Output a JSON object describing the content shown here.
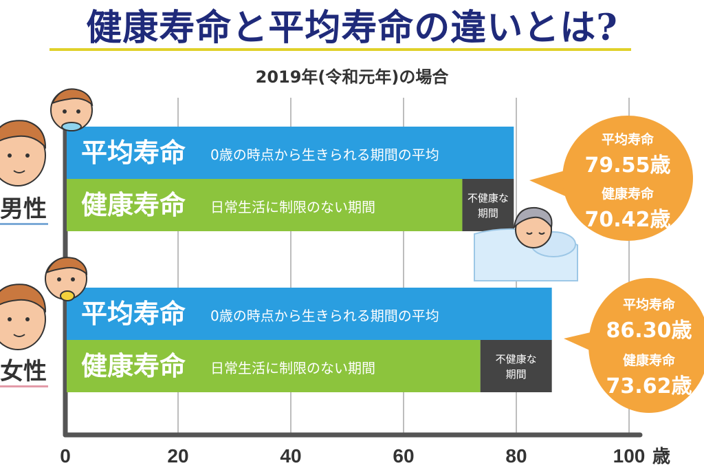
{
  "title": "健康寿命と平均寿命の違いとは?",
  "subtitle": "2019年(令和元年)の場合",
  "colors": {
    "average_bar": "#2a9ee0",
    "healthy_bar": "#8cc43d",
    "unhealthy_bar": "#444444",
    "bubble": "#f4a53c",
    "axis": "#555555",
    "grid": "#bdbdbd",
    "male_line": "#7aa9d6",
    "female_line": "#e39aa8"
  },
  "chart_data": {
    "type": "bar",
    "orientation": "horizontal",
    "x_ticks": [
      "0",
      "20",
      "40",
      "60",
      "80",
      "100"
    ],
    "x_unit": "歳",
    "xlim": [
      0,
      105
    ],
    "grid": true,
    "groups": [
      {
        "gender": "男性",
        "average_title": "平均寿命",
        "average_desc": "0歳の時点から生きられる期間の平均",
        "healthy_title": "健康寿命",
        "healthy_desc": "日常生活に制限のない期間",
        "unhealthy_label_1": "不健康な",
        "unhealthy_label_2": "期間",
        "average_life": 79.55,
        "healthy_life": 70.42,
        "bubble_avg_label": "平均寿命",
        "bubble_avg_value": "79.55歳",
        "bubble_healthy_label": "健康寿命",
        "bubble_healthy_value": "70.42歳"
      },
      {
        "gender": "女性",
        "average_title": "平均寿命",
        "average_desc": "0歳の時点から生きられる期間の平均",
        "healthy_title": "健康寿命",
        "healthy_desc": "日常生活に制限のない期間",
        "unhealthy_label_1": "不健康な",
        "unhealthy_label_2": "期間",
        "average_life": 86.3,
        "healthy_life": 73.62,
        "bubble_avg_label": "平均寿命",
        "bubble_avg_value": "86.30歳",
        "bubble_healthy_label": "健康寿命",
        "bubble_healthy_value": "73.62歳"
      }
    ]
  }
}
